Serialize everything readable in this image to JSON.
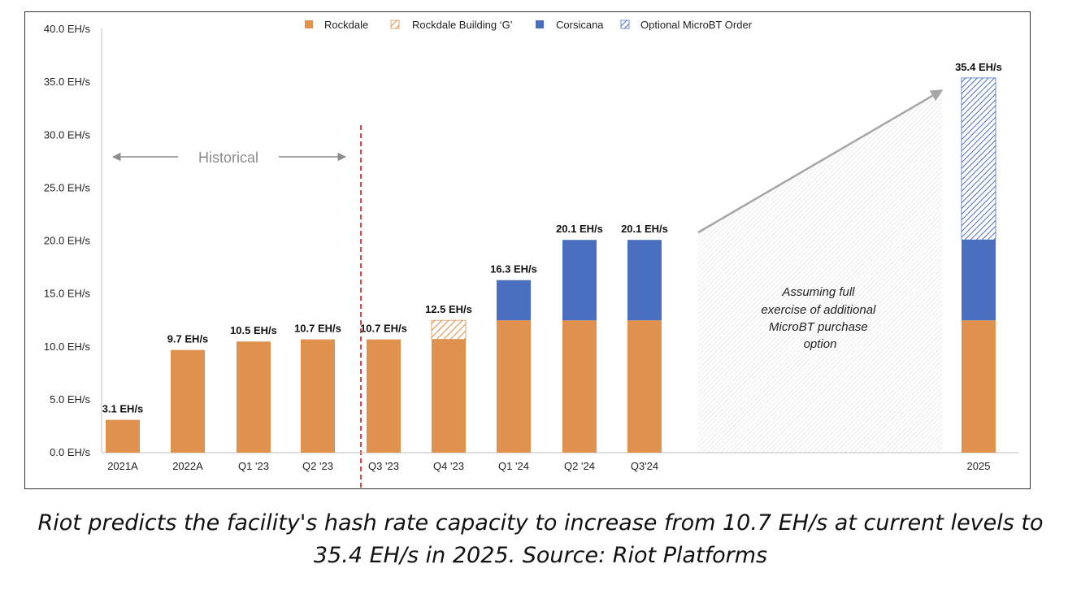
{
  "chart_data": {
    "type": "bar",
    "stacked": true,
    "title": "",
    "xlabel": "",
    "ylabel": "",
    "ylim": [
      0,
      40
    ],
    "y_ticks": [
      "0.0 EH/s",
      "5.0 EH/s",
      "10.0 EH/s",
      "15.0 EH/s",
      "20.0 EH/s",
      "25.0 EH/s",
      "30.0 EH/s",
      "35.0 EH/s",
      "40.0 EH/s"
    ],
    "y_tick_values": [
      0,
      5,
      10,
      15,
      20,
      25,
      30,
      35,
      40
    ],
    "categories": [
      "2021A",
      "2022A",
      "Q1 '23",
      "Q2 '23",
      "Q3 '23",
      "Q4 '23",
      "Q1 '24",
      "Q2 '24",
      "Q3'24",
      "2025"
    ],
    "series": [
      {
        "name": "Rockdale",
        "color": "#df914d",
        "pattern": "solid",
        "values": [
          3.1,
          9.7,
          10.5,
          10.7,
          10.7,
          10.7,
          12.5,
          12.5,
          12.5,
          12.5
        ]
      },
      {
        "name": "Rockdale Building ‘G’",
        "color": "#df914d",
        "pattern": "hatched",
        "values": [
          0,
          0,
          0,
          0,
          0,
          1.8,
          0,
          0,
          0,
          0
        ]
      },
      {
        "name": "Corsicana",
        "color": "#4a6fbf",
        "pattern": "solid",
        "values": [
          0,
          0,
          0,
          0,
          0,
          0,
          3.8,
          7.6,
          7.6,
          7.6
        ]
      },
      {
        "name": "Optional MicroBT Order",
        "color": "#4a6fbf",
        "pattern": "hatched",
        "values": [
          0,
          0,
          0,
          0,
          0,
          0,
          0,
          0,
          0,
          15.3
        ]
      }
    ],
    "totals": [
      "3.1 EH/s",
      "9.7 EH/s",
      "10.5 EH/s",
      "10.7 EH/s",
      "10.7 EH/s",
      "12.5 EH/s",
      "16.3 EH/s",
      "20.1 EH/s",
      "20.1 EH/s",
      "35.4 EH/s"
    ],
    "legend_position": "top-center",
    "annotations": {
      "historical": "Historical",
      "note": [
        "Assuming full",
        "exercise of additional",
        "MicroBT purchase",
        "option"
      ]
    }
  },
  "caption": {
    "line1": "Riot predicts the facility's hash rate capacity to increase from 10.7 EH/s at current levels to",
    "line2": "35.4 EH/s in 2025. Source: Riot Platforms"
  }
}
